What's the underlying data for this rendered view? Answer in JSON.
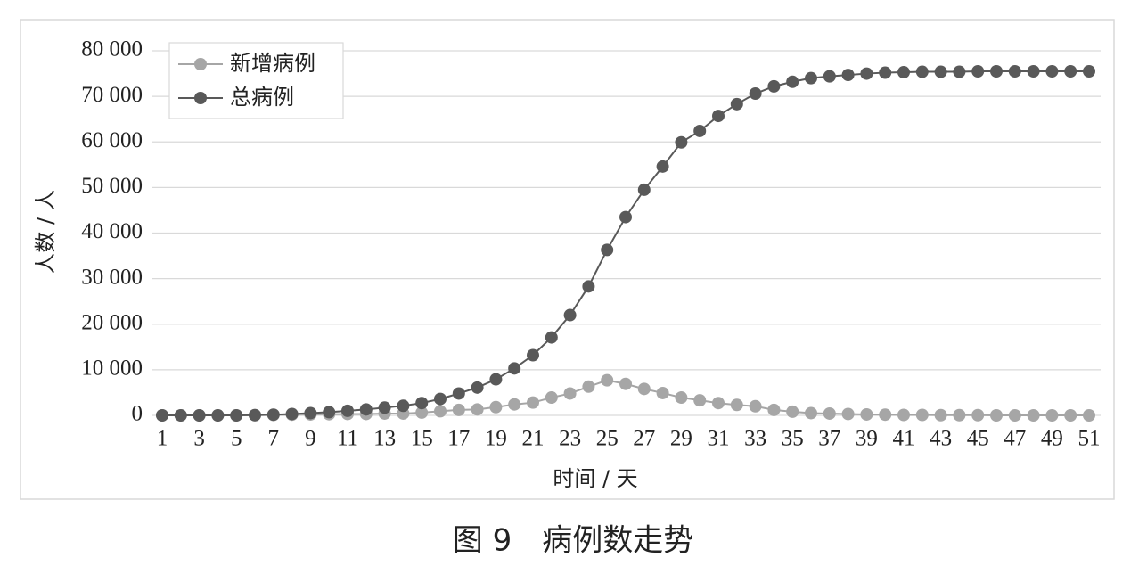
{
  "chart_data": {
    "type": "line",
    "title": "图 9　病例数走势",
    "x_label": "时间 / 天",
    "y_label": "人数 / 人",
    "categories": [
      "1",
      null,
      "3",
      null,
      "5",
      null,
      "7",
      null,
      "9",
      null,
      "11",
      null,
      "13",
      null,
      "15",
      null,
      "17",
      null,
      "19",
      null,
      "21",
      null,
      "23",
      null,
      "25",
      null,
      "27",
      null,
      "29",
      null,
      "31",
      null,
      "33",
      null,
      "35",
      null,
      "37",
      null,
      "39",
      null,
      "41",
      null,
      "43",
      null,
      "45",
      null,
      "47",
      null,
      "49",
      null,
      "51"
    ],
    "series": [
      {
        "name": "新增病例",
        "color": "#a6a6a6",
        "values": [
          0,
          0,
          0,
          0,
          0,
          50,
          100,
          150,
          200,
          250,
          300,
          300,
          400,
          400,
          600,
          900,
          1200,
          1300,
          1800,
          2400,
          2800,
          3900,
          4800,
          6300,
          7700,
          6900,
          5800,
          4900,
          3900,
          3300,
          2700,
          2300,
          2000,
          1200,
          800,
          500,
          400,
          300,
          200,
          150,
          100,
          100,
          50,
          50,
          50,
          0,
          0,
          0,
          0,
          0,
          0
        ]
      },
      {
        "name": "总病例",
        "color": "#595959",
        "values": [
          0,
          0,
          0,
          0,
          0,
          50,
          150,
          300,
          500,
          700,
          1000,
          1300,
          1700,
          2100,
          2700,
          3600,
          4800,
          6100,
          7900,
          10300,
          13200,
          17100,
          22000,
          28300,
          36300,
          43500,
          49500,
          54600,
          59900,
          62400,
          65700,
          68300,
          70600,
          72200,
          73200,
          74000,
          74400,
          74700,
          75000,
          75200,
          75300,
          75400,
          75400,
          75400,
          75500,
          75500,
          75500,
          75500,
          75500,
          75500,
          75500
        ]
      }
    ],
    "ylim": [
      0,
      80000
    ],
    "yticks": [
      0,
      {
        "value": 10000,
        "label": "10 000"
      },
      {
        "value": 20000,
        "label": "20 000"
      },
      {
        "value": 30000,
        "label": "30 000"
      },
      {
        "value": 40000,
        "label": "40 000"
      },
      {
        "value": 50000,
        "label": "50 000"
      },
      {
        "value": 60000,
        "label": "60 000"
      },
      {
        "value": 70000,
        "label": "70 000"
      },
      {
        "value": 80000,
        "label": "80 000"
      }
    ],
    "grid": true,
    "legend": "upper-left"
  }
}
